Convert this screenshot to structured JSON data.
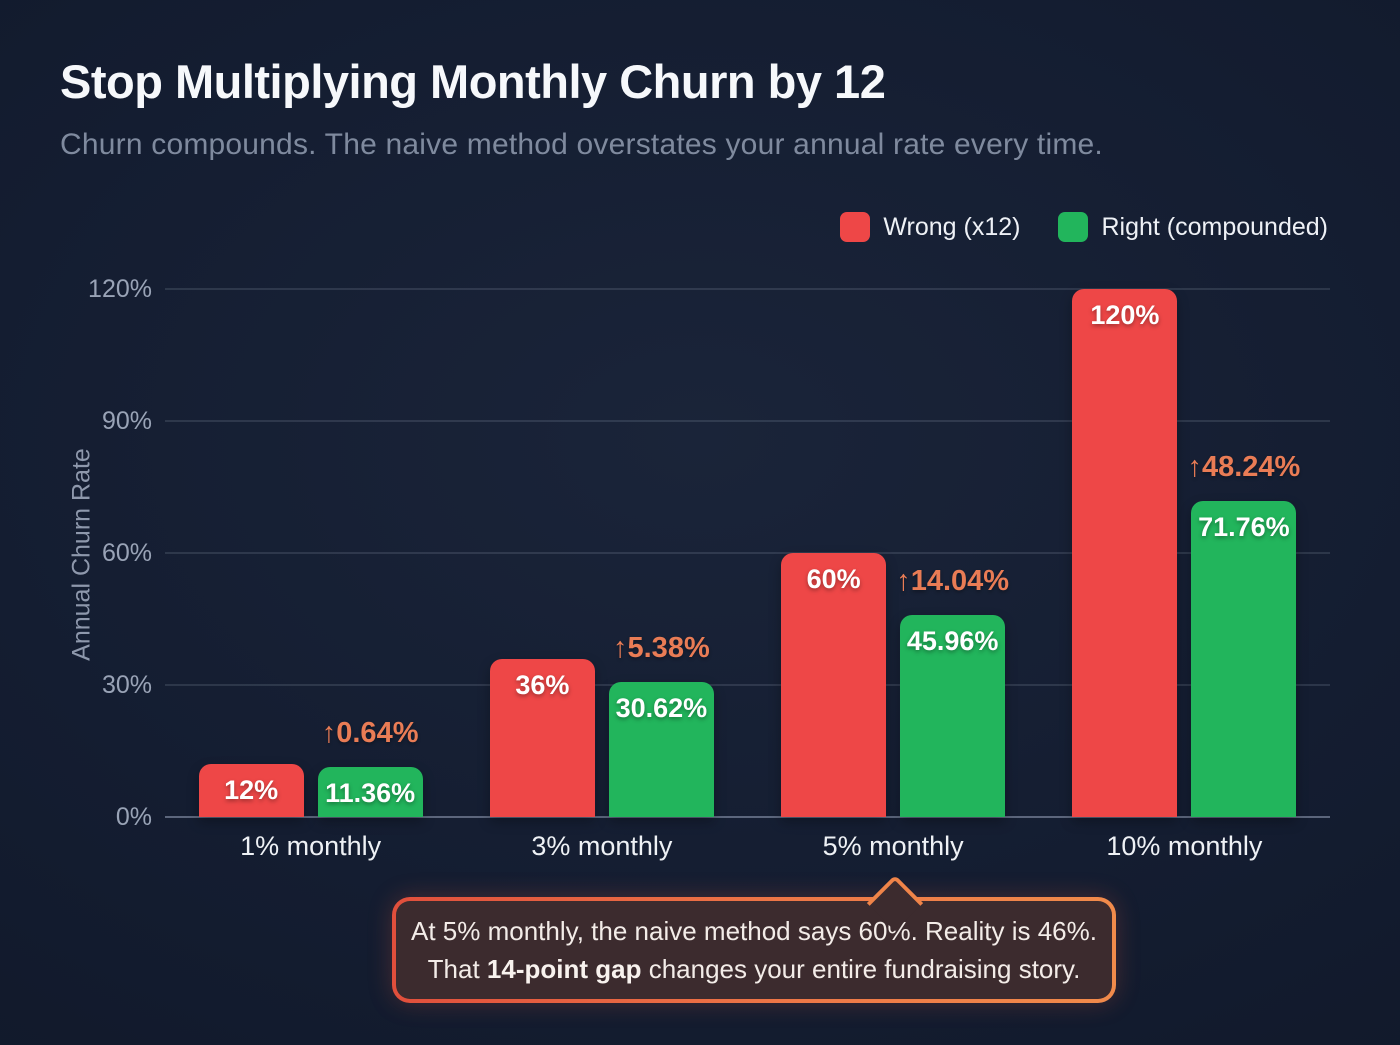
{
  "header": {
    "title": "Stop Multiplying Monthly Churn by 12",
    "subtitle": "Churn compounds. The naive method overstates your annual rate every time."
  },
  "legend": [
    {
      "label": "Wrong (x12)",
      "color": "#ee4747"
    },
    {
      "label": "Right (compounded)",
      "color": "#22b55c"
    }
  ],
  "chart_data": {
    "type": "bar",
    "categories": [
      "1% monthly",
      "3% monthly",
      "5% monthly",
      "10% monthly"
    ],
    "series": [
      {
        "name": "Wrong (x12)",
        "color": "#ee4747",
        "values": [
          12,
          36,
          60,
          120
        ],
        "display": [
          "12%",
          "36%",
          "60%",
          "120%"
        ]
      },
      {
        "name": "Right (compounded)",
        "color": "#22b55c",
        "values": [
          11.36,
          30.62,
          45.96,
          71.76
        ],
        "display": [
          "11.36%",
          "30.62%",
          "45.96%",
          "71.76%"
        ]
      }
    ],
    "annotations": {
      "color": "#e97c55",
      "items": [
        "↑0.64%",
        "↑5.38%",
        "↑14.04%",
        "↑48.24%"
      ]
    },
    "ylabel": "Annual Churn Rate",
    "yticks": [
      {
        "label": "0%",
        "value": 0
      },
      {
        "label": "30%",
        "value": 30
      },
      {
        "label": "60%",
        "value": 60
      },
      {
        "label": "90%",
        "value": 90
      },
      {
        "label": "120%",
        "value": 120
      }
    ],
    "ylim": [
      0,
      120
    ],
    "grid": true,
    "legend_position": "top-right"
  },
  "callout": {
    "line1": "At 5% monthly, the naive method says 60%. Reality is 46%.",
    "line2_prefix": "That ",
    "line2_bold": "14-point gap",
    "line2_suffix": " changes your entire fundraising story.",
    "points_at_category": "5% monthly"
  }
}
